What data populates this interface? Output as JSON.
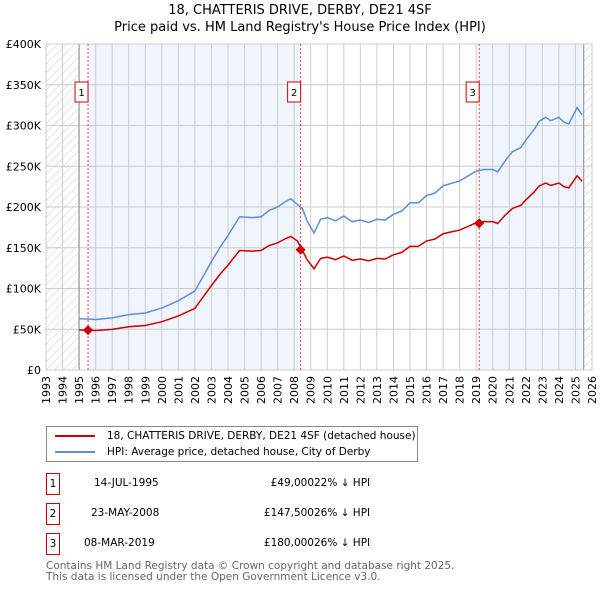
{
  "chart_data": {
    "type": "line",
    "title": "18, CHATTERIS DRIVE, DERBY, DE21 4SF",
    "subtitle": "Price paid vs. HM Land Registry's House Price Index (HPI)",
    "xlim": [
      1993,
      2026
    ],
    "ylim": [
      0,
      400000
    ],
    "x_ticks": [
      "1993",
      "1994",
      "1995",
      "1996",
      "1997",
      "1998",
      "1999",
      "2000",
      "2001",
      "2002",
      "2003",
      "2004",
      "2005",
      "2006",
      "2007",
      "2008",
      "2009",
      "2010",
      "2011",
      "2012",
      "2013",
      "2014",
      "2015",
      "2016",
      "2017",
      "2018",
      "2019",
      "2020",
      "2021",
      "2022",
      "2023",
      "2024",
      "2025",
      "2026"
    ],
    "y_ticks": [
      {
        "v": 0,
        "label": "£0"
      },
      {
        "v": 50000,
        "label": "£50K"
      },
      {
        "v": 100000,
        "label": "£100K"
      },
      {
        "v": 150000,
        "label": "£150K"
      },
      {
        "v": 200000,
        "label": "£200K"
      },
      {
        "v": 250000,
        "label": "£250K"
      },
      {
        "v": 300000,
        "label": "£300K"
      },
      {
        "v": 350000,
        "label": "£350K"
      },
      {
        "v": 400000,
        "label": "£400K"
      }
    ],
    "grid": true,
    "x": [
      1995.0,
      1996,
      1997,
      1998,
      1999,
      2000,
      2001,
      2002,
      2003,
      2003.5,
      2004,
      2004.7,
      2005.5,
      2006,
      2006.5,
      2007,
      2007.5,
      2007.8,
      2008.2,
      2008.5,
      2008.8,
      2009.2,
      2009.6,
      2010,
      2010.5,
      2011,
      2011.5,
      2012,
      2012.5,
      2013,
      2013.5,
      2014,
      2014.5,
      2015,
      2015.5,
      2016,
      2016.5,
      2017,
      2017.5,
      2018,
      2018.5,
      2019,
      2019.5,
      2020,
      2020.3,
      2020.8,
      2021.2,
      2021.7,
      2022,
      2022.5,
      2022.8,
      2023.2,
      2023.5,
      2024,
      2024.3,
      2024.6,
      2024.9,
      2025.1,
      2025.4
    ],
    "series": [
      {
        "name": "18, CHATTERIS DRIVE, DERBY, DE21 4SF (detached house)",
        "color": "#cc0000",
        "values": [
          49.1,
          48.4,
          49.9,
          53,
          54.6,
          59.3,
          66.3,
          75.7,
          103.7,
          117,
          128.7,
          146.6,
          145.9,
          146.6,
          152.9,
          156,
          161.5,
          163.8,
          158.3,
          146.5,
          134.7,
          124.3,
          136.9,
          138.4,
          135.4,
          139.9,
          134.7,
          136.2,
          133.9,
          136.9,
          136.2,
          141.3,
          144.3,
          151.7,
          151.7,
          158.4,
          160.6,
          167.2,
          169.5,
          171.7,
          176.1,
          180.6,
          182,
          182,
          179.8,
          190.9,
          198.3,
          202,
          208.7,
          218.3,
          225.7,
          229.4,
          226.4,
          229.4,
          225,
          223.5,
          232.4,
          238.3,
          231.6
        ],
        "unit": "thousand GBP"
      },
      {
        "name": "HPI: Average price, detached house, City of Derby",
        "color": "#5b8fd6",
        "values": [
          63,
          62,
          64,
          68,
          70,
          76,
          85,
          97,
          133,
          150,
          165,
          188,
          187,
          188,
          196,
          200,
          207,
          210,
          203,
          198,
          182,
          168,
          185,
          187,
          183,
          189,
          182,
          184,
          181,
          185,
          184,
          191,
          195,
          205,
          205,
          214,
          217,
          226,
          229,
          232,
          238,
          244,
          246,
          246,
          243,
          258,
          268,
          273,
          282,
          295,
          305,
          310,
          306,
          310,
          304,
          302,
          314,
          322,
          313
        ],
        "unit": "thousand GBP"
      }
    ],
    "sales": [
      {
        "id": "1",
        "x": 1995.54,
        "price": 49000,
        "date": "14-JUL-1995",
        "price_label": "£49,000",
        "hpi": "22% ↓ HPI"
      },
      {
        "id": "2",
        "x": 2008.39,
        "price": 147500,
        "date": "23-MAY-2008",
        "price_label": "£147,500",
        "hpi": "26% ↓ HPI"
      },
      {
        "id": "3",
        "x": 2019.18,
        "price": 180000,
        "date": "08-MAR-2019",
        "price_label": "£180,000",
        "hpi": "26% ↓ HPI"
      }
    ],
    "legend_position": "below"
  },
  "footer": {
    "line1": "Contains HM Land Registry data © Crown copyright and database right 2025.",
    "line2": "This data is licensed under the Open Government Licence v3.0."
  }
}
